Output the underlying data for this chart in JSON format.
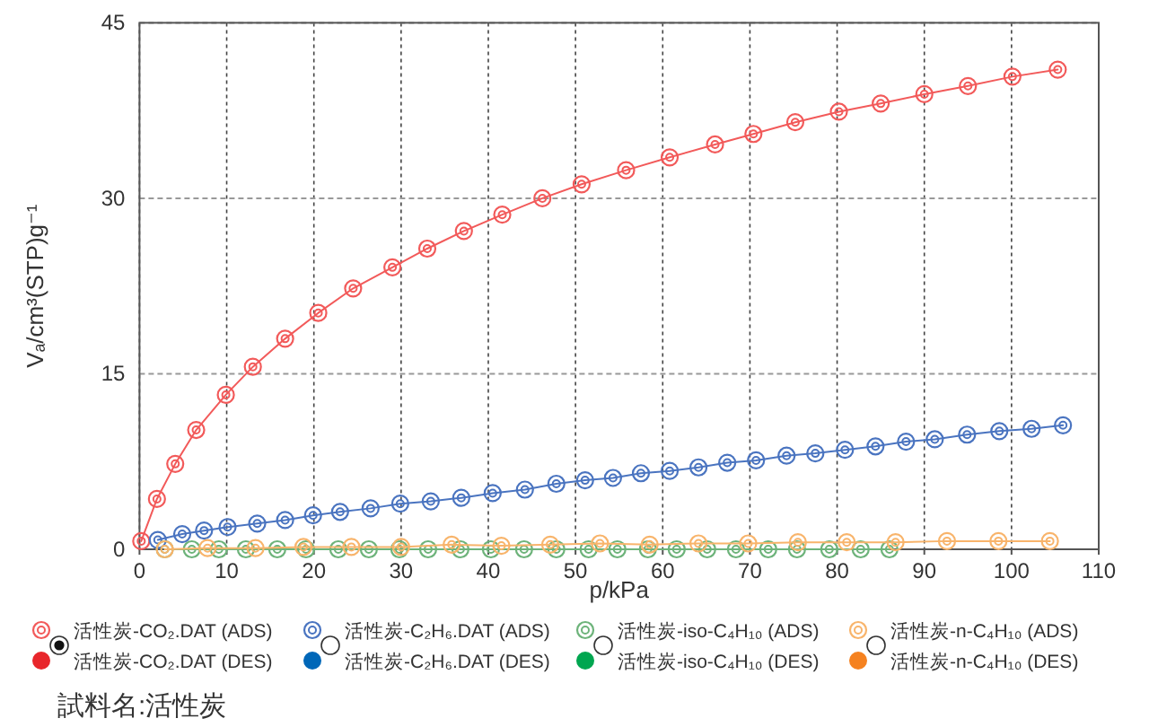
{
  "chart_data": {
    "type": "line",
    "xlabel": "p/kPa",
    "ylabel": "Vₐ/cm³(STP)g⁻¹",
    "xlim": [
      0,
      110
    ],
    "ylim": [
      0,
      45
    ],
    "xticks": [
      0,
      10,
      20,
      30,
      40,
      50,
      60,
      70,
      80,
      90,
      100,
      110
    ],
    "yticks": [
      0,
      15,
      30,
      45
    ],
    "grid": true,
    "legend": "bottom",
    "marker": "circle",
    "line_style": "solid",
    "annotations": [
      "試料名:活性炭"
    ],
    "series": [
      {
        "name": "活性炭-CO₂.DAT (ADS)",
        "color": "#f25a5a",
        "x": [
          0.2,
          2.0,
          4.1,
          6.5,
          9.9,
          13.0,
          16.7,
          20.5,
          24.5,
          29.0,
          33.0,
          37.2,
          41.6,
          46.2,
          50.7,
          55.8,
          60.8,
          66.0,
          70.4,
          75.2,
          80.2,
          85.0,
          90.0,
          95.0,
          100.1,
          105.3
        ],
        "values": [
          0.7,
          4.3,
          7.3,
          10.2,
          13.2,
          15.6,
          18.0,
          20.2,
          22.3,
          24.1,
          25.7,
          27.2,
          28.6,
          30.0,
          31.2,
          32.4,
          33.5,
          34.6,
          35.5,
          36.5,
          37.4,
          38.1,
          38.9,
          39.6,
          40.4,
          41.0
        ]
      },
      {
        "name": "活性炭-CO₂.DAT (DES)",
        "color": "#e8262b"
      },
      {
        "name": "活性炭-C₂H₆.DAT (ADS)",
        "color": "#4a74c0",
        "x": [
          2.1,
          4.9,
          7.4,
          10.1,
          13.5,
          16.7,
          19.9,
          23.0,
          26.5,
          29.9,
          33.4,
          36.9,
          40.5,
          44.2,
          47.8,
          51.1,
          54.3,
          57.5,
          60.8,
          64.1,
          67.4,
          70.7,
          74.2,
          77.5,
          80.9,
          84.4,
          87.9,
          91.2,
          94.9,
          98.6,
          102.3,
          105.9
        ],
        "values": [
          0.8,
          1.3,
          1.6,
          1.9,
          2.2,
          2.5,
          2.9,
          3.2,
          3.5,
          3.9,
          4.1,
          4.4,
          4.8,
          5.1,
          5.6,
          5.9,
          6.1,
          6.5,
          6.7,
          7.0,
          7.4,
          7.6,
          8.0,
          8.2,
          8.5,
          8.8,
          9.2,
          9.4,
          9.8,
          10.1,
          10.3,
          10.6
        ]
      },
      {
        "name": "活性炭-C₂H₆.DAT (DES)",
        "color": "#0067b8"
      },
      {
        "name": "活性炭-iso-C₄H₁₀ (ADS)",
        "color": "#6db37a",
        "x": [
          2.9,
          6.0,
          9.1,
          12.2,
          15.8,
          19.1,
          22.8,
          26.3,
          29.8,
          33.1,
          36.8,
          40.3,
          44.1,
          47.8,
          51.5,
          54.8,
          58.3,
          61.6,
          65.1,
          68.4,
          72.1,
          75.4,
          79.1,
          82.7,
          86.0
        ],
        "values": [
          0,
          0,
          0,
          0,
          0,
          0,
          0,
          0,
          0,
          0,
          0,
          0,
          0,
          0,
          0,
          0,
          0,
          0,
          0,
          0,
          0,
          0,
          0,
          0,
          0
        ]
      },
      {
        "name": "活性炭-iso-C₄H₁₀ (DES)",
        "color": "#00a650"
      },
      {
        "name": "活性炭-n-C₄H₁₀ (ADS)",
        "color": "#f8b46b",
        "x": [
          2.9,
          7.8,
          13.3,
          18.8,
          24.3,
          30.0,
          35.8,
          41.5,
          47.1,
          52.8,
          58.5,
          64.1,
          69.8,
          75.5,
          81.1,
          86.7,
          92.6,
          98.5,
          104.4
        ],
        "values": [
          0,
          0.1,
          0.1,
          0.2,
          0.2,
          0.2,
          0.4,
          0.3,
          0.4,
          0.5,
          0.4,
          0.5,
          0.5,
          0.6,
          0.6,
          0.6,
          0.7,
          0.7,
          0.7
        ]
      },
      {
        "name": "活性炭-n-C₄H₁₀ (DES)",
        "color": "#f58220"
      }
    ]
  }
}
